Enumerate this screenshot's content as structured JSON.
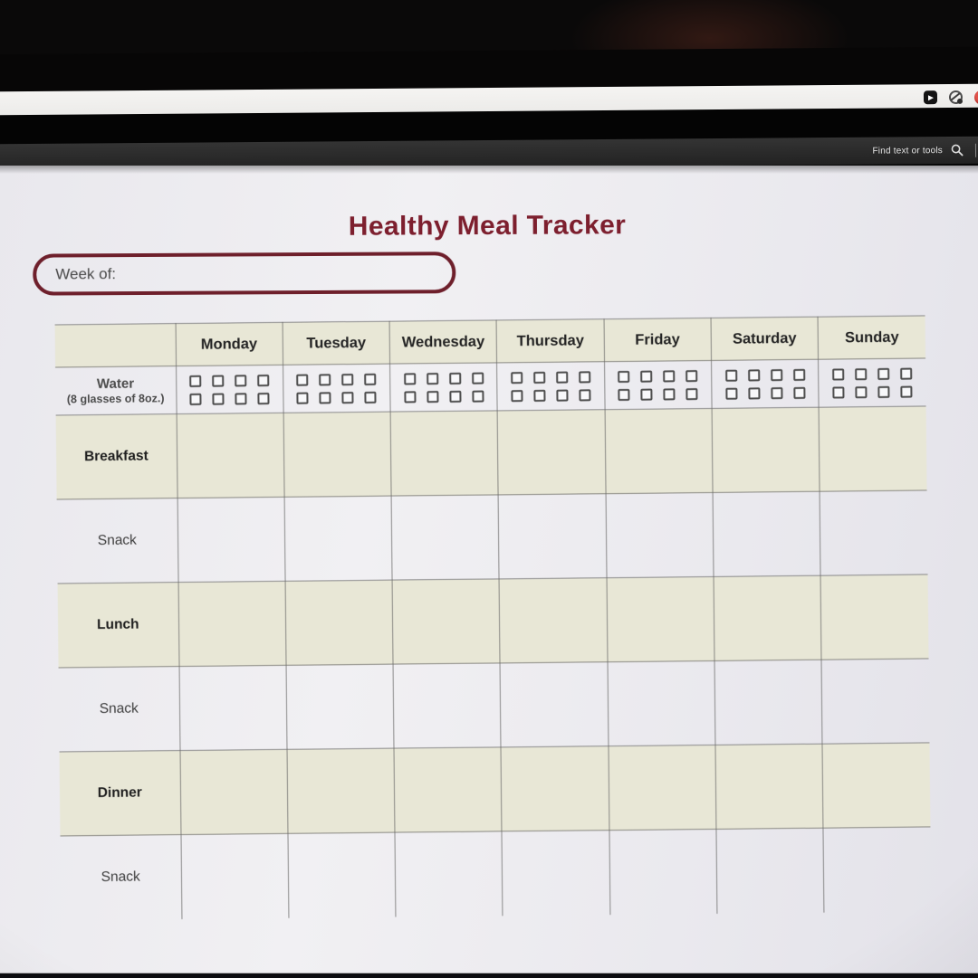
{
  "browser_chrome": {
    "extension_icons": [
      {
        "name": "video-play-icon"
      },
      {
        "name": "circular-logo-icon"
      },
      {
        "name": "red-logo-icon"
      }
    ],
    "pdf_toolbar": {
      "find_label": "Find text or tools"
    }
  },
  "document": {
    "title": "Healthy Meal Tracker",
    "week_field_label": "Week of:",
    "table": {
      "day_headers": [
        "Monday",
        "Tuesday",
        "Wednesday",
        "Thursday",
        "Friday",
        "Saturday",
        "Sunday"
      ],
      "rows": [
        {
          "label": "Water",
          "sublabel": "(8 glasses of 8oz.)",
          "type": "water",
          "checkboxes_per_day": 8
        },
        {
          "label": "Breakfast",
          "type": "meal"
        },
        {
          "label": "Snack",
          "type": "snack"
        },
        {
          "label": "Lunch",
          "type": "meal"
        },
        {
          "label": "Snack",
          "type": "snack"
        },
        {
          "label": "Dinner",
          "type": "meal"
        },
        {
          "label": "Snack",
          "type": "snack"
        }
      ]
    },
    "colors": {
      "accent_maroon": "#7d1f2e",
      "row_beige": "#e8e7d6",
      "page_background": "#edecf0",
      "grid_line": "#8a8a8a"
    }
  }
}
